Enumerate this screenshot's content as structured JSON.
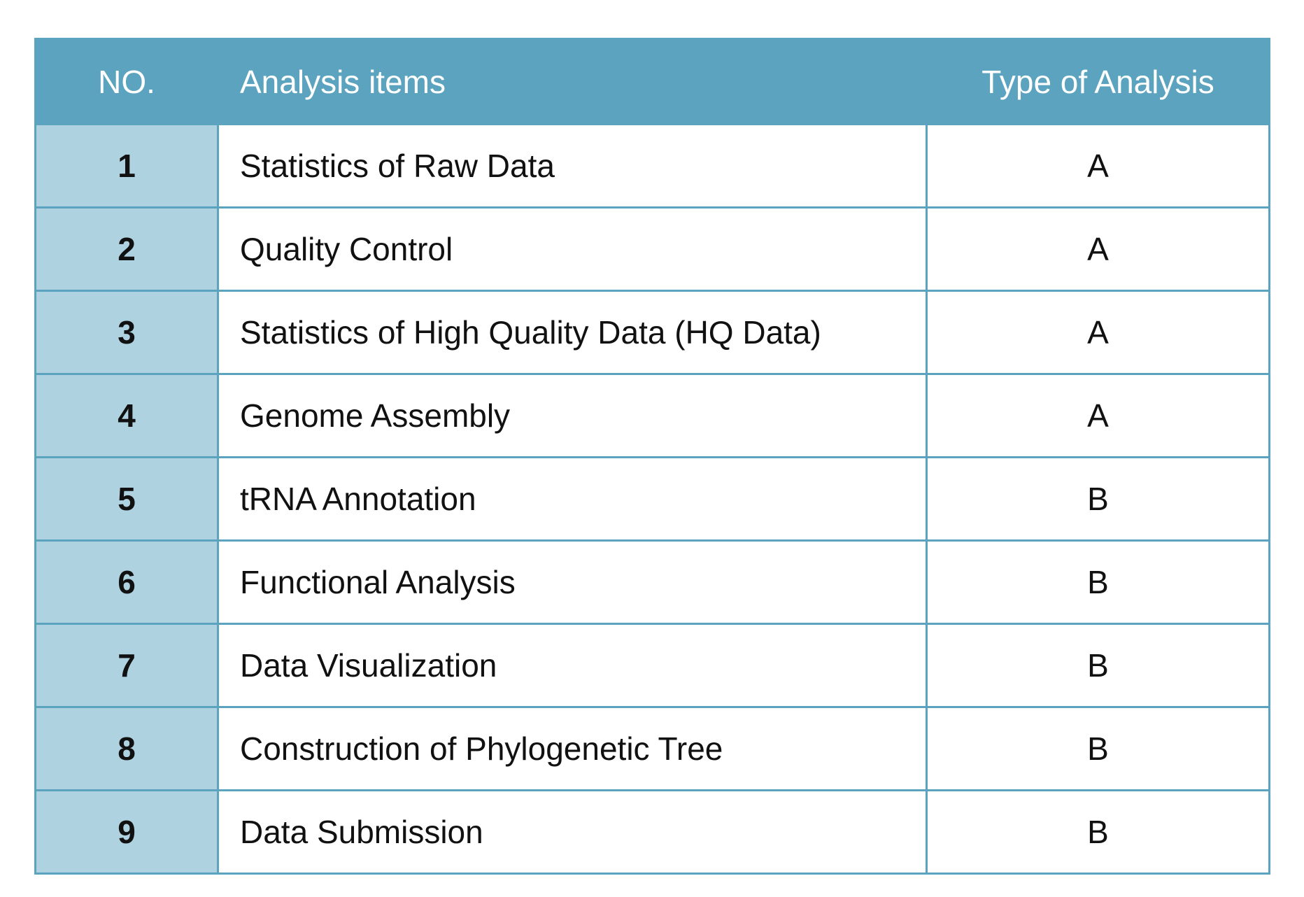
{
  "colors": {
    "header_bg": "#5ba3be",
    "number_col_bg": "#afd2e0",
    "border": "#5ba3be",
    "header_text": "#ffffff"
  },
  "table": {
    "headers": {
      "no": "NO.",
      "item": "Analysis items",
      "type": "Type of Analysis"
    },
    "rows": [
      {
        "no": "1",
        "item": "Statistics of Raw Data",
        "type": "A"
      },
      {
        "no": "2",
        "item": "Quality Control",
        "type": "A"
      },
      {
        "no": "3",
        "item": "Statistics of High Quality Data (HQ Data)",
        "type": "A"
      },
      {
        "no": "4",
        "item": "Genome Assembly",
        "type": "A"
      },
      {
        "no": "5",
        "item": "tRNA Annotation",
        "type": "B"
      },
      {
        "no": "6",
        "item": "Functional Analysis",
        "type": "B"
      },
      {
        "no": "7",
        "item": "Data Visualization",
        "type": "B"
      },
      {
        "no": "8",
        "item": "Construction of Phylogenetic Tree",
        "type": "B"
      },
      {
        "no": "9",
        "item": "Data Submission",
        "type": "B"
      }
    ]
  }
}
